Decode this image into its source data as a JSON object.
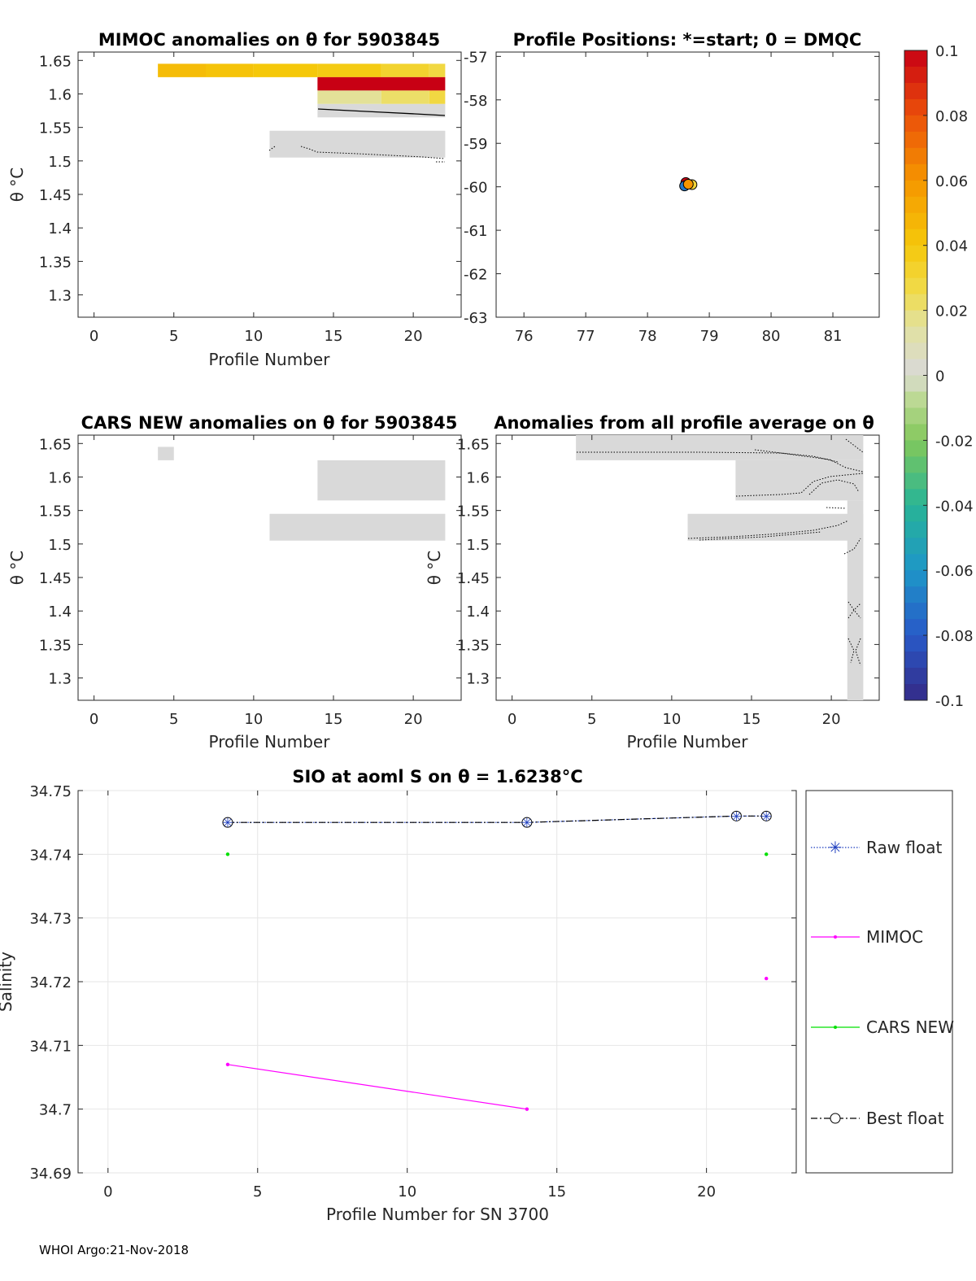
{
  "footer": "WHOI Argo:21-Nov-2018",
  "colors": {
    "grey_cell": "#d9d9d9",
    "raw_float": "#1f3fbf",
    "mimoc": "#ff00ff",
    "cars_new": "#00e000",
    "best_float": "#000000"
  },
  "colorbar": {
    "ticks": [
      "0.1",
      "0.08",
      "0.06",
      "0.04",
      "0.02",
      "0",
      "-0.02",
      "-0.04",
      "-0.06",
      "-0.08",
      "-0.1"
    ],
    "range": [
      -0.1,
      0.1
    ]
  },
  "chart_data": [
    {
      "id": "mimoc",
      "type": "heatmap",
      "title": "MIMOC anomalies on θ  for 5903845",
      "xlabel": "Profile Number",
      "ylabel": "θ °C",
      "xlim": [
        -1,
        23
      ],
      "ylim": [
        1.2667,
        1.6625
      ],
      "xticks": [
        "0",
        "5",
        "10",
        "15",
        "20"
      ],
      "yticks": [
        "1.65",
        "1.6",
        "1.55",
        "1.5",
        "1.45",
        "1.4",
        "1.35",
        "1.3"
      ],
      "cells": [
        {
          "x0": 4,
          "x1": 7,
          "y0": 1.625,
          "y1": 1.645,
          "v": 0.045
        },
        {
          "x0": 7,
          "x1": 10,
          "y0": 1.625,
          "y1": 1.645,
          "v": 0.042
        },
        {
          "x0": 10,
          "x1": 14,
          "y0": 1.625,
          "y1": 1.645,
          "v": 0.04
        },
        {
          "x0": 14,
          "x1": 18,
          "y0": 1.625,
          "y1": 1.645,
          "v": 0.038
        },
        {
          "x0": 18,
          "x1": 21,
          "y0": 1.625,
          "y1": 1.645,
          "v": 0.032
        },
        {
          "x0": 21,
          "x1": 22,
          "y0": 1.625,
          "y1": 1.645,
          "v": 0.028
        },
        {
          "x0": 14,
          "x1": 22,
          "y0": 1.605,
          "y1": 1.625,
          "v": 0.1
        },
        {
          "x0": 14,
          "x1": 18,
          "y0": 1.585,
          "y1": 1.605,
          "v": 0.016
        },
        {
          "x0": 18,
          "x1": 21,
          "y0": 1.585,
          "y1": 1.605,
          "v": 0.022
        },
        {
          "x0": 21,
          "x1": 22,
          "y0": 1.585,
          "y1": 1.605,
          "v": 0.028
        },
        {
          "x0": 14,
          "x1": 22,
          "y0": 1.565,
          "y1": 1.585,
          "v": 0.0
        },
        {
          "x0": 11,
          "x1": 22,
          "y0": 1.505,
          "y1": 1.545,
          "v": 0.0
        }
      ]
    },
    {
      "id": "positions",
      "type": "scatter",
      "title": "Profile Positions: *=start; 0 = DMQC",
      "xlim": [
        75.55,
        81.75
      ],
      "ylim": [
        -63,
        -56.9
      ],
      "xticks": [
        "76",
        "77",
        "78",
        "79",
        "80",
        "81"
      ],
      "yticks": [
        "-57",
        "-58",
        "-59",
        "-60",
        "-61",
        "-62",
        "-63"
      ],
      "points": [
        {
          "x": 78.72,
          "y": -59.95,
          "v": 0.03
        },
        {
          "x": 78.62,
          "y": -59.9,
          "v": 0.1
        },
        {
          "x": 78.6,
          "y": -59.98,
          "v": -0.07
        },
        {
          "x": 78.66,
          "y": -59.94,
          "v": 0.06
        }
      ]
    },
    {
      "id": "cars",
      "type": "heatmap",
      "title": "CARS NEW anomalies on θ for 5903845",
      "xlabel": "Profile Number",
      "ylabel": "θ °C",
      "xlim": [
        -1,
        23
      ],
      "ylim": [
        1.2667,
        1.6625
      ],
      "xticks": [
        "0",
        "5",
        "10",
        "15",
        "20"
      ],
      "yticks": [
        "1.65",
        "1.6",
        "1.55",
        "1.5",
        "1.45",
        "1.4",
        "1.35",
        "1.3"
      ],
      "cells": [
        {
          "x0": 4,
          "x1": 5,
          "y0": 1.625,
          "y1": 1.645,
          "v": 0.0
        },
        {
          "x0": 14,
          "x1": 22,
          "y0": 1.565,
          "y1": 1.625,
          "v": 0.0
        },
        {
          "x0": 11,
          "x1": 22,
          "y0": 1.505,
          "y1": 1.545,
          "v": 0.0
        }
      ]
    },
    {
      "id": "allprof",
      "type": "heatmap",
      "title": "Anomalies from all profile average on θ",
      "xlabel": "Profile Number",
      "ylabel": "θ °C",
      "xlim": [
        -1,
        23
      ],
      "ylim": [
        1.2667,
        1.6625
      ],
      "xticks": [
        "0",
        "5",
        "10",
        "15",
        "20"
      ],
      "yticks": [
        "1.65",
        "1.6",
        "1.55",
        "1.5",
        "1.45",
        "1.4",
        "1.35",
        "1.3"
      ],
      "cells": [
        {
          "x0": 4,
          "x1": 22,
          "y0": 1.625,
          "y1": 1.665,
          "v": 0.0
        },
        {
          "x0": 14,
          "x1": 22,
          "y0": 1.565,
          "y1": 1.625,
          "v": 0.0
        },
        {
          "x0": 11,
          "x1": 22,
          "y0": 1.505,
          "y1": 1.545,
          "v": 0.0
        },
        {
          "x0": 21,
          "x1": 22,
          "y0": 1.2667,
          "y1": 1.565,
          "v": 0.0
        }
      ]
    },
    {
      "id": "salinity",
      "type": "line",
      "title": "SIO at aoml S on θ = 1.6238°C",
      "xlabel": "Profile Number for SN 3700",
      "ylabel": "Salinity",
      "xlim": [
        -1,
        23
      ],
      "ylim": [
        34.69,
        34.75
      ],
      "xticks": [
        "0",
        "5",
        "10",
        "15",
        "20"
      ],
      "yticks": [
        "34.75",
        "34.74",
        "34.73",
        "34.72",
        "34.71",
        "34.7",
        "34.69"
      ],
      "series": [
        {
          "name": "Raw float",
          "x": [
            4,
            14,
            21,
            22
          ],
          "y": [
            34.745,
            34.745,
            34.746,
            34.746
          ]
        },
        {
          "name": "MIMOC",
          "x": [
            4,
            14,
            22
          ],
          "y": [
            34.707,
            34.7,
            34.7205
          ],
          "segments": [
            [
              0,
              1
            ],
            [
              2,
              2
            ]
          ]
        },
        {
          "name": "CARS NEW",
          "x": [
            4,
            22
          ],
          "y": [
            34.74,
            34.74
          ]
        },
        {
          "name": "Best float",
          "x": [
            4,
            14,
            21,
            22
          ],
          "y": [
            34.745,
            34.745,
            34.746,
            34.746
          ]
        }
      ],
      "legend": "outside-right"
    }
  ]
}
